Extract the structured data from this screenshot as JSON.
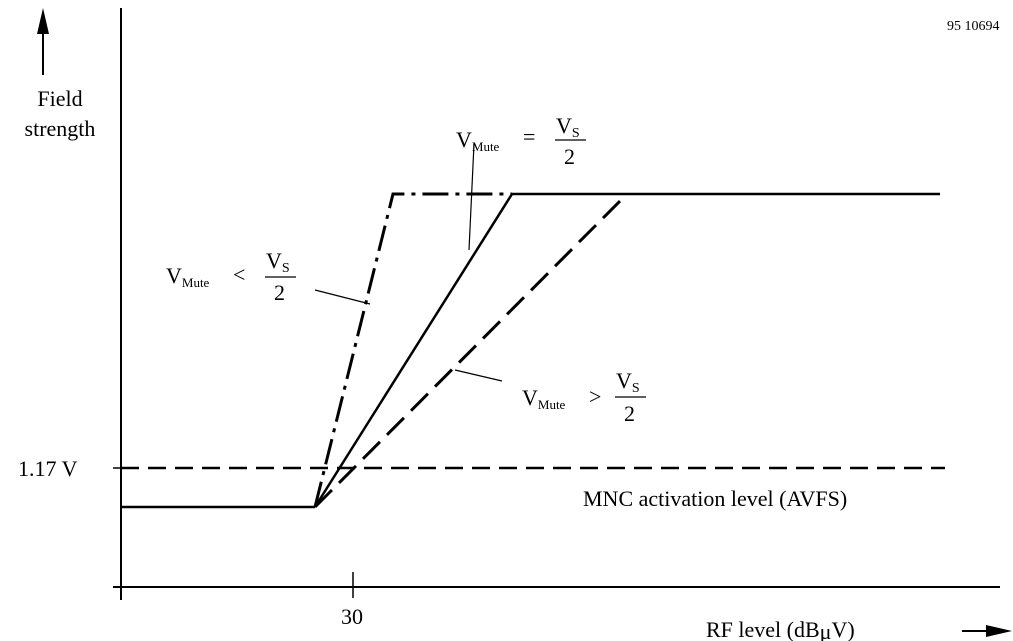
{
  "figure_id": "95 10694",
  "y_axis_label_line1": "Field",
  "y_axis_label_line2": "strength",
  "x_axis_label_prefix": "RF level (dB",
  "x_axis_label_mu": "μ",
  "x_axis_label_suffix": "V)",
  "x_tick_label": "30",
  "y_tick_label": "1.17 V",
  "activation_level_label": "MNC activation level (AVFS)",
  "formula_equal": {
    "v": "V",
    "sub": "Mute",
    "op": "=",
    "num_v": "V",
    "num_sub": "S",
    "den": "2"
  },
  "formula_less": {
    "v": "V",
    "sub": "Mute",
    "op": "<",
    "num_v": "V",
    "num_sub": "S",
    "den": "2"
  },
  "formula_greater": {
    "v": "V",
    "sub": "Mute",
    "op": ">",
    "num_v": "V",
    "num_sub": "S",
    "den": "2"
  }
}
